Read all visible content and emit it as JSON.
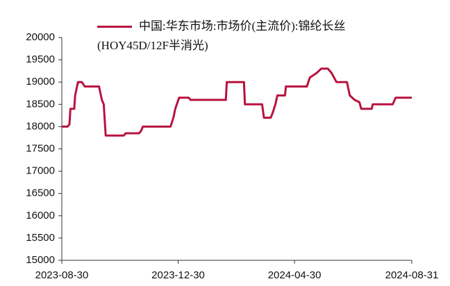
{
  "chart_data": {
    "type": "line",
    "series": [
      {
        "name": "中国:华东市场:市场价(主流价):锦纶长丝(HOY45D/12F半消光)",
        "color": "#b8123f",
        "x": [
          "2023-08-30",
          "2023-09-05",
          "2023-09-07",
          "2023-09-08",
          "2023-09-12",
          "2023-09-13",
          "2023-09-16",
          "2023-09-20",
          "2023-09-23",
          "2023-10-08",
          "2023-10-11",
          "2023-10-13",
          "2023-10-15",
          "2023-11-03",
          "2023-11-05",
          "2023-11-19",
          "2023-11-21",
          "2023-11-23",
          "2023-12-22",
          "2023-12-25",
          "2023-12-27",
          "2023-12-31",
          "2024-01-10",
          "2024-01-12",
          "2024-02-18",
          "2024-02-19",
          "2024-03-08",
          "2024-03-09",
          "2024-03-27",
          "2024-03-29",
          "2024-04-05",
          "2024-04-07",
          "2024-04-10",
          "2024-04-12",
          "2024-04-20",
          "2024-04-21",
          "2024-05-13",
          "2024-05-16",
          "2024-05-23",
          "2024-05-28",
          "2024-06-04",
          "2024-06-08",
          "2024-06-13",
          "2024-06-24",
          "2024-06-27",
          "2024-07-02",
          "2024-07-07",
          "2024-07-09",
          "2024-07-20",
          "2024-07-21",
          "2024-08-11",
          "2024-08-14",
          "2024-08-31"
        ],
        "values": [
          18000,
          18000,
          18050,
          18400,
          18400,
          18700,
          19000,
          19000,
          18900,
          18900,
          18600,
          18500,
          17800,
          17800,
          17850,
          17850,
          17900,
          18000,
          18000,
          18200,
          18400,
          18650,
          18650,
          18600,
          18600,
          19000,
          19000,
          18500,
          18500,
          18200,
          18200,
          18300,
          18500,
          18700,
          18700,
          18900,
          18900,
          19100,
          19200,
          19300,
          19300,
          19200,
          19000,
          19000,
          18700,
          18600,
          18550,
          18400,
          18400,
          18500,
          18500,
          18650,
          18650
        ]
      }
    ],
    "xlim": [
      "2023-08-30",
      "2024-08-31"
    ],
    "xticks": [
      "2023-08-30",
      "2023-12-30",
      "2024-04-30",
      "2024-08-31"
    ],
    "ylim": [
      15000,
      20000
    ],
    "yticks": [
      15000,
      15500,
      16000,
      16500,
      17000,
      17500,
      18000,
      18500,
      19000,
      19500,
      20000
    ],
    "legend": "top"
  }
}
